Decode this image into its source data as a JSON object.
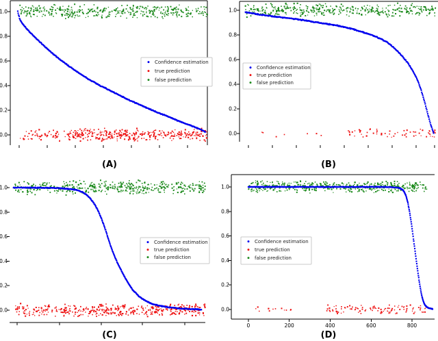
{
  "figure": {
    "background": "#ffffff",
    "description": "Four scatter plots of sorted confidence estimation curves with true/false prediction bands"
  },
  "colors": {
    "confidence": "#0000ee",
    "true_prediction": "#ee1111",
    "false_prediction": "#1f8b1f",
    "axis": "#000000",
    "tick_text": "#000000",
    "legend_border": "#c8c8c8",
    "legend_bg": "#ffffff",
    "legend_text": "#222222"
  },
  "legend": {
    "items": [
      {
        "label": "Confidence estimation",
        "color_key": "confidence"
      },
      {
        "label": "true prediction",
        "color_key": "true_prediction"
      },
      {
        "label": "false prediction",
        "color_key": "false_prediction"
      }
    ]
  },
  "y_axis": {
    "ticks": [
      {
        "v": 1.0,
        "label": "1.0"
      },
      {
        "v": 0.8,
        "label": "0.8"
      },
      {
        "v": 0.6,
        "label": "0.6"
      },
      {
        "v": 0.4,
        "label": "0.4"
      },
      {
        "v": 0.2,
        "label": "0.2"
      },
      {
        "v": 0.0,
        "label": "0.0"
      }
    ]
  },
  "chart_data": [
    {
      "id": "A",
      "caption": "(A)",
      "type": "scatter",
      "title": "",
      "xlabel": "",
      "ylabel": "",
      "ylim": [
        0,
        1
      ],
      "x_ticks": [
        {
          "f": 0.045,
          "label": ""
        },
        {
          "f": 0.187,
          "label": ""
        },
        {
          "f": 0.33,
          "label": ""
        },
        {
          "f": 0.472,
          "label": ""
        },
        {
          "f": 0.615,
          "label": ""
        },
        {
          "f": 0.757,
          "label": ""
        },
        {
          "f": 0.9,
          "label": ""
        }
      ],
      "series": [
        {
          "name": "false prediction",
          "kind": "band",
          "color_key": "false_prediction",
          "x_range": [
            0.045,
            1.0
          ],
          "y_center": 1.0,
          "y_jitter": 0.042,
          "count": 390,
          "seed": 101
        },
        {
          "name": "true prediction",
          "kind": "band",
          "color_key": "true_prediction",
          "x_range": [
            0.05,
            1.0
          ],
          "y_center": 0.0,
          "y_jitter": 0.038,
          "count": 250,
          "seed": 102
        },
        {
          "name": "true prediction",
          "kind": "band",
          "color_key": "true_prediction",
          "x_range": [
            0.3,
            1.0
          ],
          "y_center": 0.0,
          "y_jitter": 0.038,
          "count": 150,
          "seed": 103
        },
        {
          "name": "Confidence estimation",
          "kind": "curve",
          "color_key": "confidence",
          "count": 420,
          "jitter": 0.004,
          "seed": 104,
          "anchors": [
            [
              0.038,
              1.0
            ],
            [
              0.05,
              0.93
            ],
            [
              0.07,
              0.885
            ],
            [
              0.09,
              0.85
            ],
            [
              0.12,
              0.8
            ],
            [
              0.16,
              0.74
            ],
            [
              0.2,
              0.68
            ],
            [
              0.25,
              0.615
            ],
            [
              0.3,
              0.555
            ],
            [
              0.35,
              0.5
            ],
            [
              0.4,
              0.45
            ],
            [
              0.45,
              0.405
            ],
            [
              0.5,
              0.365
            ],
            [
              0.55,
              0.325
            ],
            [
              0.6,
              0.285
            ],
            [
              0.65,
              0.25
            ],
            [
              0.7,
              0.215
            ],
            [
              0.75,
              0.18
            ],
            [
              0.8,
              0.15
            ],
            [
              0.85,
              0.115
            ],
            [
              0.9,
              0.085
            ],
            [
              0.95,
              0.055
            ],
            [
              0.99,
              0.025
            ]
          ]
        }
      ]
    },
    {
      "id": "B",
      "caption": "(B)",
      "type": "scatter",
      "title": "",
      "xlabel": "",
      "ylabel": "",
      "ylim": [
        0,
        1
      ],
      "x_ticks": [
        {
          "f": 0.045,
          "label": ""
        },
        {
          "f": 0.167,
          "label": ""
        },
        {
          "f": 0.288,
          "label": ""
        },
        {
          "f": 0.41,
          "label": ""
        },
        {
          "f": 0.531,
          "label": ""
        },
        {
          "f": 0.653,
          "label": ""
        },
        {
          "f": 0.774,
          "label": ""
        },
        {
          "f": 0.896,
          "label": ""
        },
        {
          "f": 0.99,
          "label": ""
        }
      ],
      "series": [
        {
          "name": "false prediction",
          "kind": "band",
          "color_key": "false_prediction",
          "x_range": [
            0.03,
            1.0
          ],
          "y_center": 1.0,
          "y_jitter": 0.04,
          "count": 390,
          "seed": 201
        },
        {
          "name": "true prediction",
          "kind": "band",
          "color_key": "true_prediction",
          "x_range": [
            0.06,
            0.52
          ],
          "y_center": 0.0,
          "y_jitter": 0.025,
          "count": 7,
          "seed": 202
        },
        {
          "name": "true prediction",
          "kind": "band",
          "color_key": "true_prediction",
          "x_range": [
            0.55,
            0.995
          ],
          "y_center": 0.0,
          "y_jitter": 0.025,
          "count": 62,
          "seed": 203
        },
        {
          "name": "Confidence estimation",
          "kind": "curve",
          "color_key": "confidence",
          "count": 380,
          "jitter": 0.005,
          "seed": 204,
          "anchors": [
            [
              0.03,
              0.985
            ],
            [
              0.1,
              0.965
            ],
            [
              0.2,
              0.945
            ],
            [
              0.3,
              0.925
            ],
            [
              0.4,
              0.9
            ],
            [
              0.5,
              0.875
            ],
            [
              0.58,
              0.845
            ],
            [
              0.65,
              0.81
            ],
            [
              0.7,
              0.78
            ],
            [
              0.74,
              0.75
            ],
            [
              0.77,
              0.715
            ],
            [
              0.8,
              0.67
            ],
            [
              0.83,
              0.62
            ],
            [
              0.855,
              0.57
            ],
            [
              0.875,
              0.52
            ],
            [
              0.89,
              0.475
            ],
            [
              0.905,
              0.425
            ],
            [
              0.92,
              0.36
            ],
            [
              0.93,
              0.305
            ],
            [
              0.94,
              0.25
            ],
            [
              0.95,
              0.19
            ],
            [
              0.96,
              0.13
            ],
            [
              0.97,
              0.07
            ],
            [
              0.98,
              0.025
            ],
            [
              0.985,
              0.005
            ]
          ]
        }
      ]
    },
    {
      "id": "C",
      "caption": "(C)",
      "type": "scatter",
      "title": "",
      "xlabel": "",
      "ylabel": "",
      "ylim": [
        0,
        1
      ],
      "x_ticks": [
        {
          "f": 0.038,
          "label": ""
        },
        {
          "f": 0.255,
          "label": ""
        },
        {
          "f": 0.469,
          "label": ""
        },
        {
          "f": 0.678,
          "label": ""
        },
        {
          "f": 0.895,
          "label": ""
        }
      ],
      "series": [
        {
          "name": "false prediction",
          "kind": "band",
          "color_key": "false_prediction",
          "x_range": [
            0.02,
            1.0
          ],
          "y_center": 1.0,
          "y_jitter": 0.042,
          "count": 430,
          "seed": 301
        },
        {
          "name": "true prediction",
          "kind": "band",
          "color_key": "true_prediction",
          "x_range": [
            0.03,
            1.0
          ],
          "y_center": 0.0,
          "y_jitter": 0.038,
          "count": 300,
          "seed": 302
        },
        {
          "name": "true prediction",
          "kind": "band",
          "color_key": "true_prediction",
          "x_range": [
            0.25,
            1.0
          ],
          "y_center": 0.0,
          "y_jitter": 0.038,
          "count": 120,
          "seed": 303
        },
        {
          "name": "Confidence estimation",
          "kind": "curve",
          "color_key": "confidence",
          "count": 460,
          "jitter": 0.004,
          "seed": 304,
          "anchors": [
            [
              0.02,
              1.0
            ],
            [
              0.12,
              1.0
            ],
            [
              0.22,
              0.998
            ],
            [
              0.3,
              0.99
            ],
            [
              0.34,
              0.982
            ],
            [
              0.37,
              0.965
            ],
            [
              0.39,
              0.945
            ],
            [
              0.41,
              0.915
            ],
            [
              0.43,
              0.875
            ],
            [
              0.45,
              0.82
            ],
            [
              0.47,
              0.745
            ],
            [
              0.49,
              0.655
            ],
            [
              0.51,
              0.555
            ],
            [
              0.53,
              0.465
            ],
            [
              0.55,
              0.39
            ],
            [
              0.57,
              0.325
            ],
            [
              0.59,
              0.265
            ],
            [
              0.61,
              0.21
            ],
            [
              0.63,
              0.165
            ],
            [
              0.66,
              0.115
            ],
            [
              0.69,
              0.08
            ],
            [
              0.73,
              0.05
            ],
            [
              0.77,
              0.035
            ],
            [
              0.82,
              0.022
            ],
            [
              0.88,
              0.012
            ],
            [
              0.98,
              0.005
            ]
          ]
        }
      ]
    },
    {
      "id": "D",
      "caption": "(D)",
      "type": "scatter",
      "title": "",
      "xlabel": "",
      "ylabel": "",
      "ylim": [
        0,
        1
      ],
      "xlim_labeled": [
        0,
        800
      ],
      "x_ticks": [
        {
          "f": 0.084,
          "label": "0"
        },
        {
          "f": 0.285,
          "label": "200"
        },
        {
          "f": 0.486,
          "label": "400"
        },
        {
          "f": 0.688,
          "label": "600"
        },
        {
          "f": 0.889,
          "label": "800"
        }
      ],
      "series": [
        {
          "name": "false prediction",
          "kind": "band",
          "color_key": "false_prediction",
          "x_range": [
            0.084,
            0.965
          ],
          "y_center": 1.0,
          "y_jitter": 0.035,
          "count": 470,
          "seed": 401
        },
        {
          "name": "true prediction",
          "kind": "band",
          "color_key": "true_prediction",
          "x_range": [
            0.1,
            0.3
          ],
          "y_center": 0.0,
          "y_jitter": 0.028,
          "count": 12,
          "seed": 402
        },
        {
          "name": "true prediction",
          "kind": "band",
          "color_key": "true_prediction",
          "x_range": [
            0.47,
            0.965
          ],
          "y_center": 0.0,
          "y_jitter": 0.028,
          "count": 105,
          "seed": 403
        },
        {
          "name": "Confidence estimation",
          "kind": "curve",
          "color_key": "confidence",
          "count": 560,
          "jitter": 0.0025,
          "seed": 404,
          "anchors": [
            [
              0.084,
              1.0
            ],
            [
              0.45,
              1.0
            ],
            [
              0.75,
              1.0
            ],
            [
              0.8,
              0.997
            ],
            [
              0.825,
              0.992
            ],
            [
              0.84,
              0.98
            ],
            [
              0.85,
              0.962
            ],
            [
              0.86,
              0.925
            ],
            [
              0.868,
              0.875
            ],
            [
              0.875,
              0.815
            ],
            [
              0.882,
              0.745
            ],
            [
              0.889,
              0.665
            ],
            [
              0.896,
              0.575
            ],
            [
              0.903,
              0.49
            ],
            [
              0.91,
              0.4
            ],
            [
              0.917,
              0.315
            ],
            [
              0.924,
              0.235
            ],
            [
              0.931,
              0.165
            ],
            [
              0.938,
              0.105
            ],
            [
              0.946,
              0.06
            ],
            [
              0.955,
              0.03
            ],
            [
              0.97,
              0.012
            ],
            [
              0.99,
              0.004
            ]
          ]
        }
      ]
    }
  ]
}
